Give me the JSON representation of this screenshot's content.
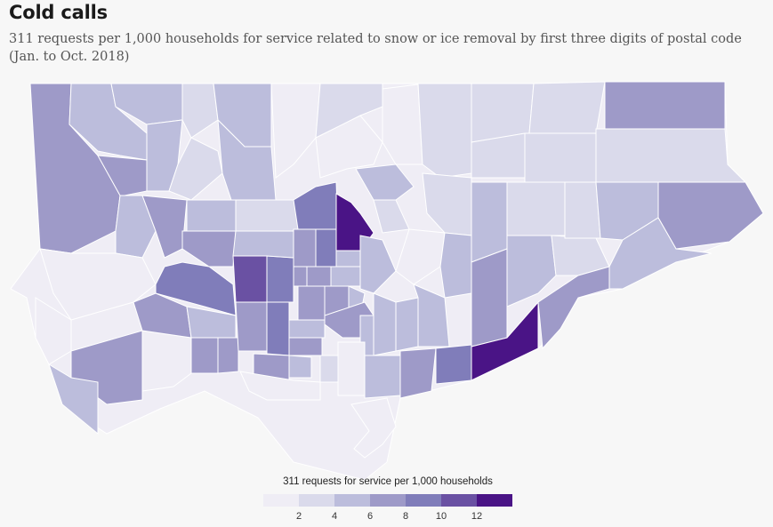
{
  "title": "Cold calls",
  "subtitle": "311 requests per 1,000 households for service related to snow or ice removal by first three digits of postal code (Jan. to Oct. 2018)",
  "legend": {
    "title": "311 requests for service per 1,000 households",
    "ticks": [
      "2",
      "4",
      "6",
      "8",
      "10",
      "12"
    ],
    "colors": [
      "#efedf5",
      "#dadaeb",
      "#bcbddc",
      "#9e9ac8",
      "#807dba",
      "#6a51a3",
      "#4a1486"
    ]
  },
  "colors": {
    "background": "#f7f7f7",
    "water": "#ffffff",
    "border": "#ffffff"
  }
}
